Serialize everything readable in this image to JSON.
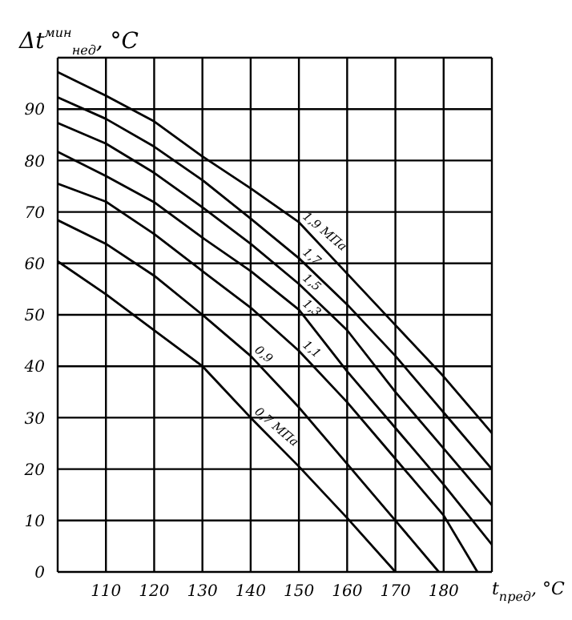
{
  "chart_data": {
    "type": "line",
    "ylabel": "Δt$^{мин}$$_{нед}$, °C",
    "xlabel": "t$_{пред}$, °C",
    "series": [
      {
        "name": "0,7 МПа",
        "color": "#000000",
        "x": [
          100,
          110,
          120,
          130,
          140,
          150,
          160,
          170
        ],
        "values": [
          60.4,
          54,
          47,
          40,
          30,
          20.5,
          10.5,
          0
        ]
      },
      {
        "name": "0,9",
        "color": "#000000",
        "x": [
          100,
          110,
          120,
          130,
          140,
          150,
          160,
          170,
          179
        ],
        "values": [
          68.4,
          63.8,
          57.6,
          50,
          42,
          32,
          21,
          10,
          0
        ]
      },
      {
        "name": "1,1",
        "color": "#000000",
        "x": [
          100,
          110,
          120,
          130,
          140,
          150,
          160,
          170,
          180,
          187
        ],
        "values": [
          75.5,
          72,
          65.7,
          58.5,
          51.4,
          43,
          33,
          22,
          11,
          0
        ]
      },
      {
        "name": "1,3",
        "color": "#000000",
        "x": [
          100,
          110,
          120,
          130,
          140,
          150,
          160,
          170,
          180,
          190
        ],
        "values": [
          81.7,
          77,
          71.9,
          65,
          58.5,
          51,
          39,
          28,
          17,
          5.3
        ]
      },
      {
        "name": "1,5",
        "color": "#000000",
        "x": [
          100,
          110,
          120,
          130,
          140,
          150,
          160,
          170,
          180,
          190
        ],
        "values": [
          87.3,
          83.3,
          77.6,
          70.9,
          63.8,
          56,
          47,
          35,
          24,
          13
        ]
      },
      {
        "name": "1,7",
        "color": "#000000",
        "x": [
          100,
          110,
          120,
          130,
          140,
          150,
          160,
          170,
          180,
          190
        ],
        "values": [
          92.3,
          88.1,
          82.7,
          76.2,
          68.7,
          61,
          52,
          42,
          31,
          20
        ]
      },
      {
        "name": "1,9 МПа",
        "color": "#000000",
        "x": [
          100,
          110,
          120,
          130,
          140,
          150,
          160,
          170,
          180,
          190
        ],
        "values": [
          97.2,
          92.6,
          87.6,
          80.8,
          74.6,
          68,
          58,
          48,
          38,
          27
        ]
      }
    ],
    "xlim": [
      100,
      190
    ],
    "xticks": [
      {
        "value": 100,
        "label": null
      },
      110,
      120,
      130,
      140,
      150,
      160,
      170,
      180,
      {
        "value": 190,
        "label": null
      }
    ],
    "ylim": [
      0,
      100
    ],
    "yticks": [
      0,
      10,
      20,
      30,
      40,
      50,
      60,
      70,
      80,
      90,
      {
        "value": 100,
        "label": null
      }
    ],
    "grid": true,
    "marker": "none",
    "line_style": "solid"
  }
}
